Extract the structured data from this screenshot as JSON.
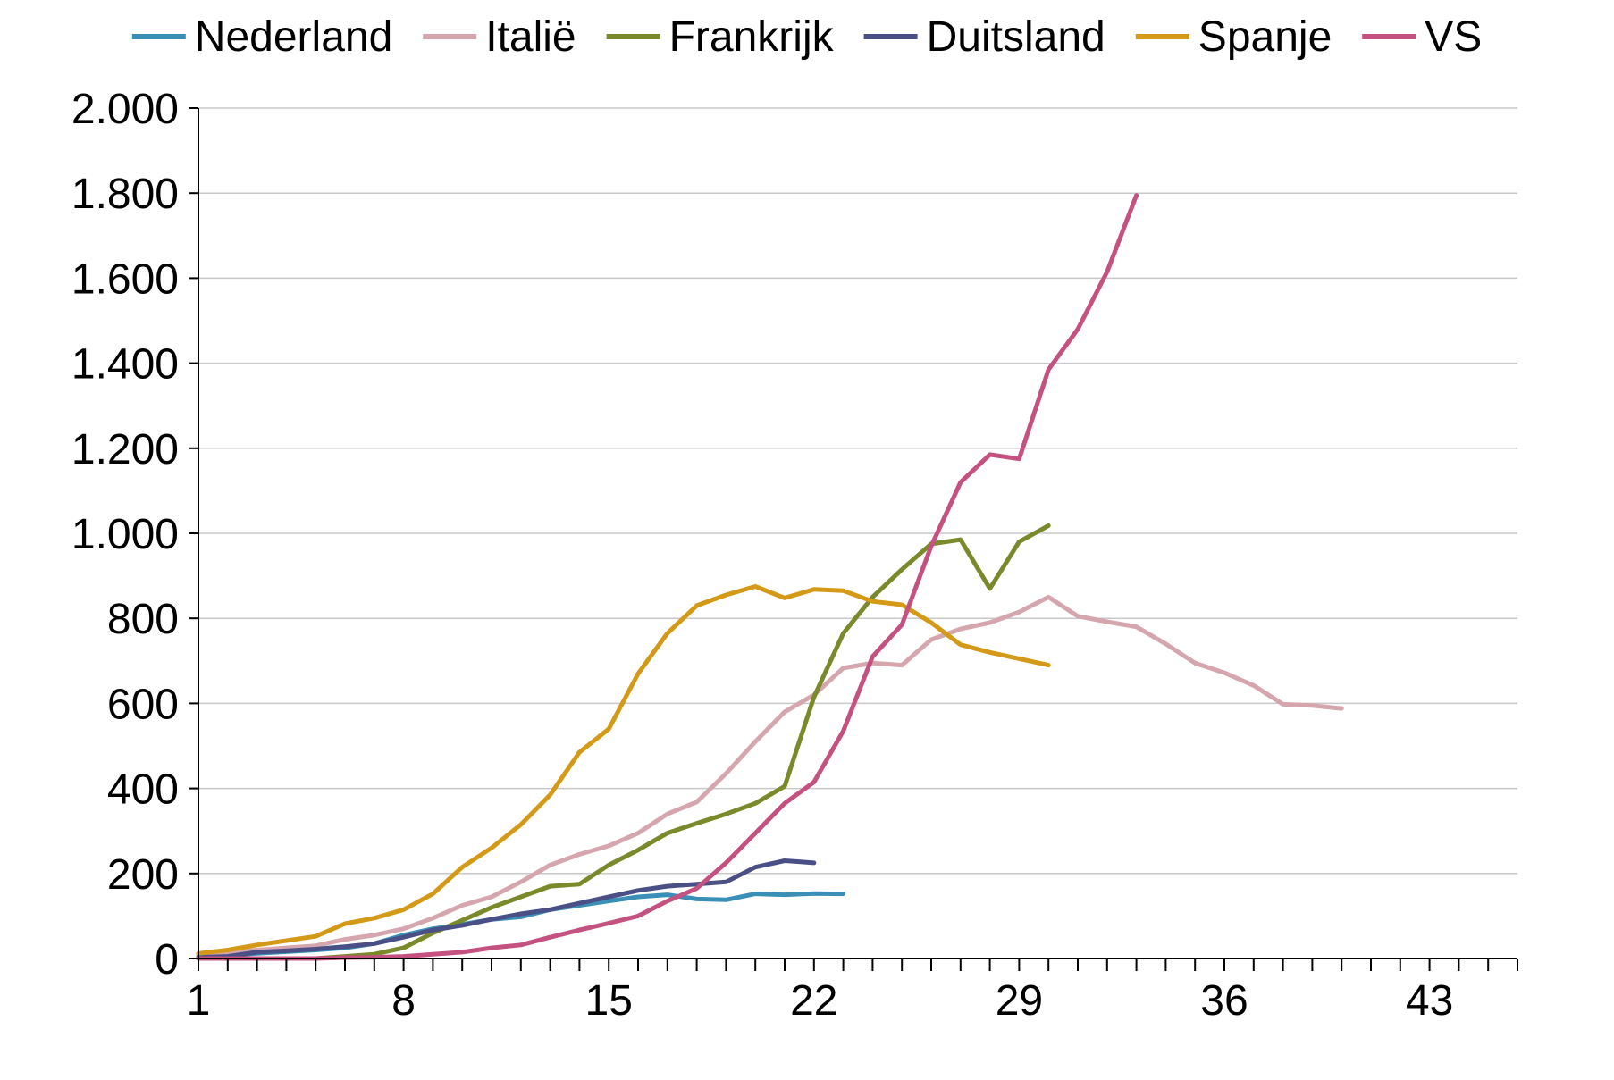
{
  "chart_data": {
    "type": "line",
    "title": "",
    "xlabel": "",
    "ylabel": "",
    "xlim": [
      1,
      46
    ],
    "ylim": [
      0,
      2000
    ],
    "xticks": [
      1,
      8,
      15,
      22,
      29,
      36,
      43
    ],
    "xtick_labels": [
      "1",
      "8",
      "15",
      "22",
      "29",
      "36",
      "43"
    ],
    "yticks": [
      0,
      200,
      400,
      600,
      800,
      1000,
      1200,
      1400,
      1600,
      1800,
      2000
    ],
    "ytick_labels": [
      "0",
      "200",
      "400",
      "600",
      "800",
      "1.000",
      "1.200",
      "1.400",
      "1.600",
      "1.800",
      "2.000"
    ],
    "grid": "horizontal",
    "legend_position": "top",
    "series": [
      {
        "name": "Nederland",
        "color": "#3a8fb7",
        "x": [
          1,
          2,
          3,
          4,
          5,
          6,
          7,
          8,
          9,
          10,
          11,
          12,
          13,
          14,
          15,
          16,
          17,
          18,
          19,
          20,
          21,
          22,
          23
        ],
        "values": [
          5,
          8,
          12,
          16,
          20,
          25,
          35,
          55,
          70,
          80,
          92,
          98,
          115,
          125,
          135,
          145,
          150,
          140,
          138,
          152,
          150,
          153,
          152
        ]
      },
      {
        "name": "Italië",
        "color": "#d5a6ad",
        "x": [
          1,
          2,
          3,
          4,
          5,
          6,
          7,
          8,
          9,
          10,
          11,
          12,
          13,
          14,
          15,
          16,
          17,
          18,
          19,
          20,
          21,
          22,
          23,
          24,
          25,
          26,
          27,
          28,
          29,
          30,
          31,
          32,
          33,
          34,
          35,
          36,
          37,
          38,
          39,
          40
        ],
        "values": [
          10,
          15,
          20,
          25,
          30,
          45,
          55,
          70,
          95,
          125,
          145,
          180,
          220,
          245,
          265,
          295,
          340,
          368,
          435,
          510,
          580,
          620,
          683,
          695,
          690,
          750,
          775,
          790,
          815,
          850,
          805,
          792,
          780,
          740,
          695,
          672,
          642,
          598,
          595,
          588
        ]
      },
      {
        "name": "Frankrijk",
        "color": "#7a8a2a",
        "x": [
          1,
          2,
          3,
          4,
          5,
          6,
          7,
          8,
          9,
          10,
          11,
          12,
          13,
          14,
          15,
          16,
          17,
          18,
          19,
          20,
          21,
          22,
          23,
          24,
          25,
          26,
          27,
          28,
          29,
          30
        ],
        "values": [
          0,
          0,
          0,
          0,
          0,
          5,
          10,
          25,
          60,
          90,
          120,
          145,
          170,
          175,
          220,
          255,
          295,
          318,
          340,
          365,
          405,
          615,
          765,
          850,
          915,
          975,
          985,
          870,
          980,
          1018
        ]
      },
      {
        "name": "Duitsland",
        "color": "#4a4f85",
        "x": [
          1,
          2,
          3,
          4,
          5,
          6,
          7,
          8,
          9,
          10,
          11,
          12,
          13,
          14,
          15,
          16,
          17,
          18,
          19,
          20,
          21,
          22
        ],
        "values": [
          3,
          5,
          15,
          18,
          22,
          28,
          35,
          50,
          67,
          78,
          92,
          105,
          115,
          130,
          145,
          160,
          170,
          175,
          180,
          215,
          230,
          225
        ]
      },
      {
        "name": "Spanje",
        "color": "#d49a17",
        "x": [
          1,
          2,
          3,
          4,
          5,
          6,
          7,
          8,
          9,
          10,
          11,
          12,
          13,
          14,
          15,
          16,
          17,
          18,
          19,
          20,
          21,
          22,
          23,
          24,
          25,
          26,
          27,
          28,
          29,
          30
        ],
        "values": [
          12,
          20,
          32,
          42,
          52,
          82,
          95,
          115,
          152,
          215,
          260,
          315,
          385,
          485,
          540,
          670,
          765,
          830,
          855,
          875,
          848,
          868,
          865,
          840,
          832,
          790,
          738,
          720,
          705,
          690
        ]
      },
      {
        "name": "VS",
        "color": "#c4517f",
        "x": [
          1,
          2,
          3,
          4,
          5,
          6,
          7,
          8,
          9,
          10,
          11,
          12,
          13,
          14,
          15,
          16,
          17,
          18,
          19,
          20,
          21,
          22,
          23,
          24,
          25,
          26,
          27,
          28,
          29,
          30,
          31,
          32,
          33
        ],
        "values": [
          0,
          0,
          0,
          0,
          0,
          2,
          3,
          5,
          10,
          15,
          25,
          32,
          50,
          67,
          83,
          100,
          135,
          165,
          225,
          295,
          365,
          415,
          535,
          710,
          785,
          970,
          1120,
          1185,
          1175,
          1385,
          1480,
          1615,
          1795
        ]
      }
    ]
  }
}
